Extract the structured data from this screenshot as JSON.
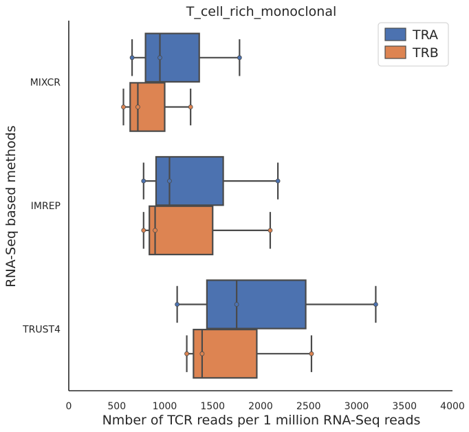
{
  "chart_data": {
    "type": "boxplot",
    "orientation": "horizontal",
    "title": "T_cell_rich_monoclonal",
    "xlabel": "Nmber of TCR reads per 1 million RNA-Seq reads",
    "ylabel": "RNA-Seq based methods",
    "xlim": [
      0,
      4000
    ],
    "xticks": [
      "0",
      "500",
      "1000",
      "1500",
      "2000",
      "2500",
      "3000",
      "3500",
      "4000"
    ],
    "categories": [
      "MIXCR",
      "IMREP",
      "TRUST4"
    ],
    "legend": {
      "position": "top-right"
    },
    "grid": false,
    "series": [
      {
        "name": "TRA",
        "color": "#4c72b0",
        "boxes": [
          {
            "category": "MIXCR",
            "whislo": 660,
            "q1": 800,
            "med": 950,
            "q3": 1360,
            "whishi": 1780,
            "points": [
              660,
              950,
              1780
            ]
          },
          {
            "category": "IMREP",
            "whislo": 780,
            "q1": 910,
            "med": 1050,
            "q3": 1610,
            "whishi": 2180,
            "points": [
              780,
              1050,
              2180
            ]
          },
          {
            "category": "TRUST4",
            "whislo": 1130,
            "q1": 1440,
            "med": 1750,
            "q3": 2470,
            "whishi": 3200,
            "points": [
              1130,
              1750,
              3200
            ]
          }
        ]
      },
      {
        "name": "TRB",
        "color": "#dd8452",
        "boxes": [
          {
            "category": "MIXCR",
            "whislo": 570,
            "q1": 640,
            "med": 720,
            "q3": 1000,
            "whishi": 1270,
            "points": [
              570,
              720,
              1270
            ]
          },
          {
            "category": "IMREP",
            "whislo": 780,
            "q1": 840,
            "med": 900,
            "q3": 1500,
            "whishi": 2100,
            "points": [
              780,
              900,
              2100
            ]
          },
          {
            "category": "TRUST4",
            "whislo": 1230,
            "q1": 1300,
            "med": 1390,
            "q3": 1960,
            "whishi": 2530,
            "points": [
              1230,
              1390,
              2530
            ]
          }
        ]
      }
    ]
  }
}
